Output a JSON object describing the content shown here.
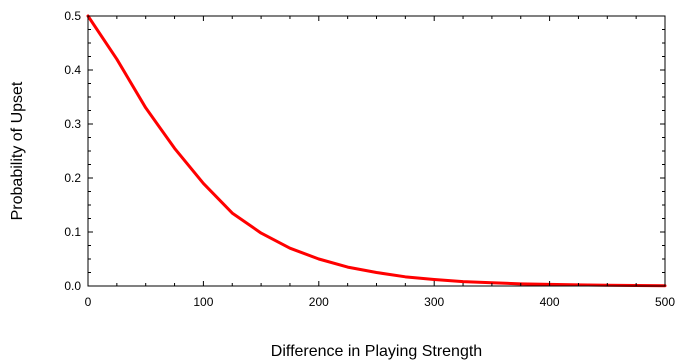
{
  "chart_data": {
    "type": "line",
    "title": "",
    "xlabel": "Difference in Playing Strength",
    "ylabel": "Probability of Upset",
    "xlim": [
      0,
      500
    ],
    "ylim": [
      0,
      0.5
    ],
    "x_ticks": [
      0,
      100,
      200,
      300,
      400,
      500
    ],
    "x_tick_labels": [
      "0",
      "100",
      "200",
      "300",
      "400",
      "500"
    ],
    "y_ticks": [
      0,
      0.1,
      0.2,
      0.3,
      0.4,
      0.5
    ],
    "y_tick_labels": [
      "0.0",
      "0.1",
      "0.2",
      "0.3",
      "0.4",
      "0.5"
    ],
    "grid": false,
    "series": [
      {
        "color": "#ff0000",
        "x": [
          0,
          25,
          50,
          75,
          100,
          125,
          150,
          175,
          200,
          225,
          250,
          275,
          300,
          325,
          350,
          375,
          400,
          425,
          450,
          475,
          500
        ],
        "y": [
          0.5,
          0.42,
          0.33,
          0.255,
          0.19,
          0.135,
          0.098,
          0.07,
          0.05,
          0.035,
          0.025,
          0.017,
          0.012,
          0.008,
          0.006,
          0.004,
          0.003,
          0.002,
          0.0015,
          0.001,
          0.0005
        ]
      }
    ]
  }
}
